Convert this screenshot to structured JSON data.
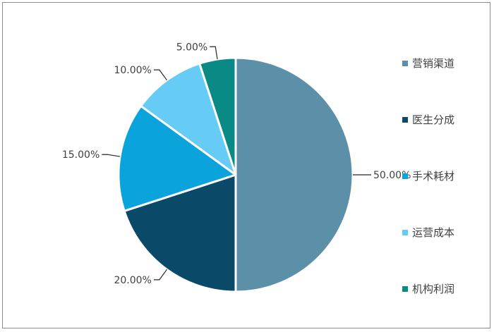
{
  "chart_data": {
    "type": "pie",
    "title": "",
    "categories": [
      "营销渠道",
      "医生分成",
      "手术耗材",
      "运营成本",
      "机构利润"
    ],
    "values": [
      50,
      20,
      15,
      10,
      5
    ],
    "labels": [
      "50.00%",
      "20.00%",
      "15.00%",
      "10.00%",
      "5.00%"
    ],
    "colors": [
      "#5b90a8",
      "#0a4a68",
      "#0aa3dc",
      "#66ccf5",
      "#0a8a84"
    ],
    "start_angle_deg": 0,
    "direction": "clockwise",
    "legend_position": "right"
  }
}
